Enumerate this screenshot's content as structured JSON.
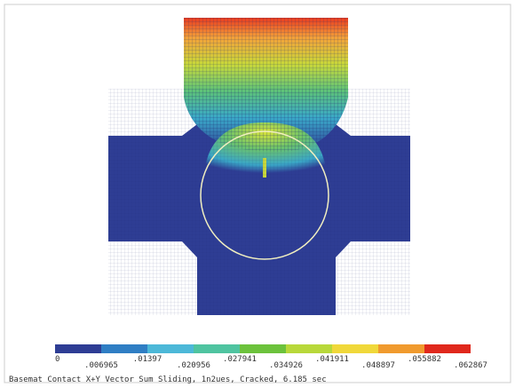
{
  "legend": {
    "labels": [
      "0",
      ".006965",
      ".01397",
      ".020956",
      ".027941",
      ".034926",
      ".041911",
      ".048897",
      ".055882",
      ".062867"
    ]
  },
  "caption": "Basemat Contact X+Y Vector Sum Sliding, 1n2ues, Cracked, 6.185 sec"
}
